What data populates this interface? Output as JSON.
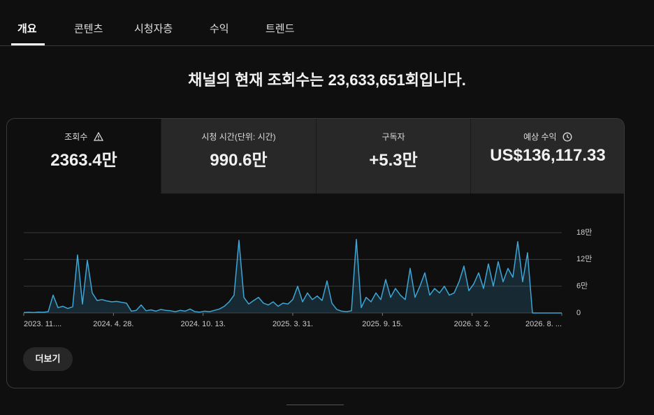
{
  "tabs": [
    "개요",
    "콘텐츠",
    "시청자층",
    "수익",
    "트렌드"
  ],
  "headline": "채널의 현재 조회수는 23,633,651회입니다.",
  "metrics": [
    {
      "label": "조회수",
      "value": "2363.4만"
    },
    {
      "label": "시청 시간(단위: 시간)",
      "value": "990.6만"
    },
    {
      "label": "구독자",
      "value": "+5.3만"
    },
    {
      "label": "예상 수익",
      "value": "US$136,117.33"
    }
  ],
  "chart_data": {
    "type": "line",
    "x_tick_labels": [
      "2023. 11....",
      "2024. 4. 28.",
      "2024. 10. 13.",
      "2025. 3. 31.",
      "2025. 9. 15.",
      "2026. 3. 2.",
      "2026. 8. ..."
    ],
    "color": "#3ea6d6",
    "values": [
      1000,
      1500,
      1000,
      2000,
      1500,
      3000,
      40000,
      12000,
      15000,
      10000,
      14000,
      130000,
      20000,
      118000,
      45000,
      28000,
      30000,
      27000,
      25000,
      26000,
      24000,
      22000,
      4000,
      6000,
      18000,
      5000,
      7000,
      4000,
      8000,
      6000,
      5000,
      3000,
      6000,
      4000,
      9000,
      3000,
      2000,
      4000,
      3000,
      6000,
      9000,
      15000,
      25000,
      40000,
      163000,
      35000,
      20000,
      28000,
      35000,
      22000,
      18000,
      25000,
      15000,
      22000,
      20000,
      30000,
      60000,
      25000,
      45000,
      30000,
      38000,
      28000,
      72000,
      22000,
      8000,
      4000,
      3000,
      5000,
      165000,
      12000,
      35000,
      25000,
      45000,
      30000,
      75000,
      35000,
      55000,
      40000,
      30000,
      100000,
      35000,
      60000,
      90000,
      40000,
      55000,
      45000,
      60000,
      40000,
      45000,
      70000,
      105000,
      50000,
      65000,
      90000,
      55000,
      110000,
      60000,
      115000,
      70000,
      100000,
      80000,
      160000,
      70000,
      135000,
      0,
      0,
      0,
      0,
      0,
      0,
      0
    ],
    "ylim": [
      0,
      180000
    ],
    "yticks": [
      0,
      {
        "value": 60000,
        "label": "6만"
      },
      {
        "value": 120000,
        "label": "12만"
      },
      {
        "value": 180000,
        "label": "18만"
      }
    ],
    "grid": true
  },
  "more_button": "더보기"
}
